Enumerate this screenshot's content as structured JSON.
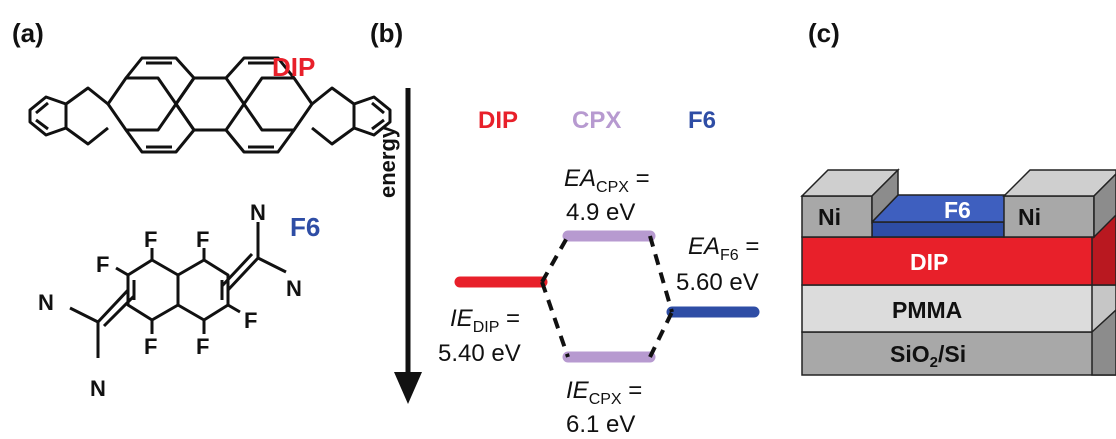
{
  "panels": {
    "a": {
      "label": "(a)",
      "dip_name": "DIP",
      "f6_name": "F6"
    },
    "b": {
      "label": "(b)",
      "energy_axis": "energy"
    },
    "c": {
      "label": "(c)"
    }
  },
  "f6_atoms": {
    "f": "F",
    "n": "N"
  },
  "energy_diagram": {
    "headers": {
      "dip": "DIP",
      "cpx": "CPX",
      "f6": "F6"
    },
    "ea_cpx": {
      "main": "EA",
      "sub": "CPX",
      "eq": " =",
      "value": "4.9 eV"
    },
    "ie_cpx": {
      "main": "IE",
      "sub": "CPX",
      "eq": " =",
      "value": "6.1 eV"
    },
    "ie_dip": {
      "main": "IE",
      "sub": "DIP",
      "eq": " =",
      "value": "5.40 eV"
    },
    "ea_f6": {
      "main": "EA",
      "sub": "F6",
      "eq": " =",
      "value": "5.60 eV"
    }
  },
  "device": {
    "electrode_left": "Ni",
    "electrode_right": "Ni",
    "f6_layer": "F6",
    "dip_layer": "DIP",
    "pmma_layer": "PMMA",
    "substrate_main": "SiO",
    "substrate_sub": "2",
    "substrate_rest": "/Si"
  },
  "colors": {
    "dip_red": "#e8202a",
    "cpx_purple": "#b79ad0",
    "f6_blue": "#2e4da5",
    "gray_dark": "#a8a8a8",
    "gray_light": "#dcdcdc",
    "text": "#111111"
  }
}
